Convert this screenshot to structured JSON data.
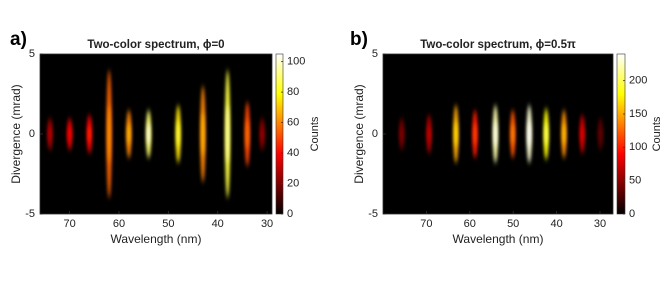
{
  "chart_data": [
    {
      "type": "heatmap",
      "panel_label": "a)",
      "title": "Two-color spectrum, ϕ=0",
      "x_label": "Wavelength (nm)",
      "y_label": "Divergence (mrad)",
      "colorbar_label": "Counts",
      "colormap": "hot",
      "xlim": [
        76,
        29
      ],
      "xticks": [
        70,
        60,
        50,
        40,
        30
      ],
      "ylim": [
        -5,
        5
      ],
      "yticks": [
        -5,
        0,
        5
      ],
      "clim": [
        0,
        105
      ],
      "cticks": [
        0,
        20,
        40,
        60,
        80,
        100
      ],
      "x": [
        74,
        70,
        66,
        62,
        58,
        54,
        48,
        43,
        38,
        34,
        31
      ],
      "values": [
        25,
        35,
        40,
        55,
        60,
        90,
        75,
        60,
        85,
        50,
        20
      ],
      "spread": [
        1,
        1,
        1.2,
        4,
        1.5,
        1.5,
        1.8,
        3,
        4,
        2,
        1
      ]
    },
    {
      "type": "heatmap",
      "panel_label": "b)",
      "title": "Two-color spectrum, ϕ=0.5π",
      "x_label": "Wavelength (nm)",
      "y_label": "Divergence (mrad)",
      "colorbar_label": "Counts",
      "colormap": "hot",
      "xlim": [
        80,
        27
      ],
      "xticks": [
        70,
        60,
        50,
        40,
        30
      ],
      "ylim": [
        -5,
        5
      ],
      "yticks": [
        -5,
        0,
        5
      ],
      "clim": [
        0,
        240
      ],
      "cticks": [
        0,
        50,
        100,
        150,
        200
      ],
      "x": [
        75.7,
        69.4,
        63.2,
        58.8,
        54.1,
        50.1,
        46.3,
        42.4,
        38.3,
        34.1,
        29.9
      ],
      "values": [
        40,
        60,
        150,
        100,
        220,
        120,
        230,
        180,
        140,
        70,
        30
      ],
      "spread": [
        1,
        1.2,
        1.8,
        1.5,
        1.8,
        1.5,
        1.8,
        1.6,
        1.5,
        1.2,
        1
      ]
    }
  ]
}
